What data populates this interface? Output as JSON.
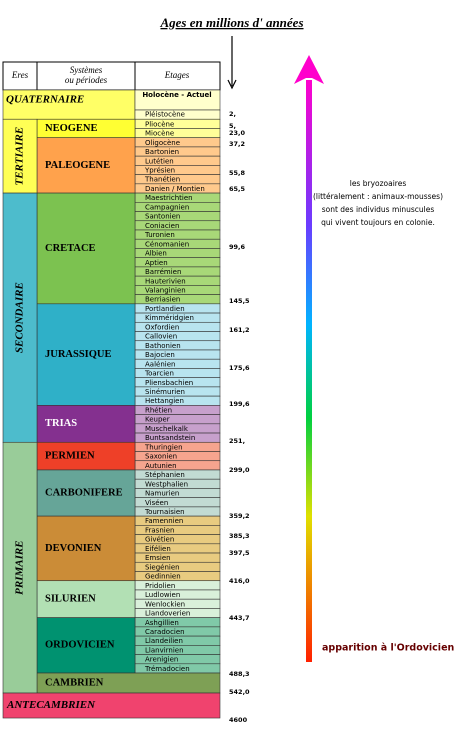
{
  "title": "Ages en millions d' années",
  "header": {
    "eras": "Eres",
    "systems": [
      "Systèmes",
      "ou périodes"
    ],
    "stages": "Etages"
  },
  "quaternaire": {
    "name": "QUATERNAIRE",
    "stages": [
      "Holocène - Actuel",
      "Pléistocène"
    ]
  },
  "eras": [
    {
      "name": "TERTIAIRE",
      "systems": [
        {
          "name": "NEOGENE",
          "stages": [
            "Pliocène",
            "Miocène"
          ]
        },
        {
          "name": "PALEOGENE",
          "stages": [
            "Oligocène",
            "Bartonien",
            "Lutétien",
            "Yprésien",
            "Thanétien",
            "Danien / Montien"
          ]
        }
      ]
    },
    {
      "name": "SECONDAIRE",
      "systems": [
        {
          "name": "CRETACE",
          "stages": [
            "Maestrichtien",
            "Campagnien",
            "Santonien",
            "Coniacien",
            "Turonien",
            "Cénomanien",
            "Albien",
            "Aptien",
            "Barrémien",
            "Hauterivien",
            "Valanginien",
            "Berriasien"
          ]
        },
        {
          "name": "JURASSIQUE",
          "stages": [
            "Portlandien",
            "Kimméridgien",
            "Oxfordien",
            "Callovien",
            "Bathonien",
            "Bajocien",
            "Aalénien",
            "Toarcien",
            "Pliensbachien",
            "Sinémurien",
            "Hettangien"
          ]
        },
        {
          "name": "TRIAS",
          "stages": [
            "Rhétien",
            "Keuper",
            "Muschelkalk",
            "Buntsandstein"
          ]
        }
      ]
    },
    {
      "name": "PRIMAIRE",
      "systems": [
        {
          "name": "PERMIEN",
          "stages": [
            "Thuringien",
            "Saxonien",
            "Autunien"
          ]
        },
        {
          "name": "CARBONIFERE",
          "stages": [
            "Stéphanien",
            "Westphalien",
            "Namurien",
            "Viséen",
            "Tournaisien"
          ]
        },
        {
          "name": "DEVONIEN",
          "stages": [
            "Famennien",
            "Frasnien",
            "Givétien",
            "Eifélien",
            "Emsien",
            "Siegénien",
            "Gedinnien"
          ]
        },
        {
          "name": "SILURIEN",
          "stages": [
            "Pridolien",
            "Ludlowien",
            "Wenlockien",
            "Llandoverien"
          ]
        },
        {
          "name": "ORDOVICIEN",
          "stages": [
            "Ashgillien",
            "Caradocien",
            "Llandeilien",
            "Llanvirnien",
            "Arenigien",
            "Trémadocien"
          ]
        },
        {
          "name": "CAMBRIEN",
          "stages": []
        }
      ]
    }
  ],
  "antecambrien": "ANTECAMBRIEN",
  "ages": [
    "2,",
    "5,",
    "23,0",
    "37,2",
    "55,8",
    "65,5",
    "99,6",
    "145,5",
    "161,2",
    "175,6",
    "199,6",
    "251,",
    "299,0",
    "359,2",
    "385,3",
    "397,5",
    "416,0",
    "443,7",
    "488,3",
    "542,0",
    "4600"
  ],
  "note": [
    "les bryozoaires",
    "(littéralement : animaux-mousses)",
    "sont des individus minuscules",
    "qui vivent toujours en colonie."
  ],
  "apparition": "apparition à l'Ordovicien"
}
